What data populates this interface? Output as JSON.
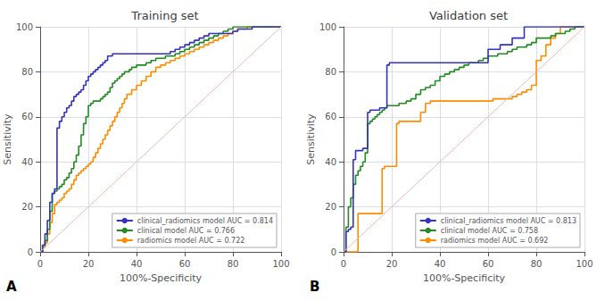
{
  "chart_data": [
    {
      "type": "step",
      "title": "Training set",
      "xlabel": "100%-Specificity",
      "ylabel": "Sensitivity",
      "annotation": "A",
      "xlim": [
        0,
        100
      ],
      "ylim": [
        0,
        100
      ],
      "xticks": [
        0,
        20,
        40,
        60,
        80,
        100
      ],
      "yticks": [
        0,
        20,
        40,
        60,
        80,
        100
      ],
      "grid": true,
      "legend": "lower right",
      "series": [
        {
          "type": "line",
          "color": "#e8b8b8",
          "x": [
            0,
            100
          ],
          "values": [
            0,
            100
          ]
        },
        {
          "name": "clinical_radiomics model AUC = 0.814",
          "color": "#3333bb",
          "x": [
            0,
            1,
            2,
            3,
            4,
            5,
            6,
            7,
            8,
            9,
            10,
            11,
            12,
            13,
            14,
            15,
            16,
            17,
            18,
            19,
            20,
            21,
            22,
            23,
            24,
            25,
            26,
            27,
            28,
            29,
            30,
            31,
            32,
            33,
            34,
            35,
            36,
            37,
            38,
            40,
            42,
            44,
            46,
            48,
            50,
            52,
            54,
            56,
            58,
            60,
            62,
            64,
            66,
            68,
            70,
            72,
            74,
            76,
            78,
            80,
            82,
            84,
            86,
            88,
            90,
            92,
            94,
            96,
            98,
            100
          ],
          "values": [
            0,
            3,
            8,
            14,
            22,
            26,
            28,
            55,
            58,
            60,
            62,
            64,
            65,
            67,
            69,
            70,
            71,
            72,
            74,
            76,
            78,
            79,
            80,
            81,
            82,
            83,
            84,
            85,
            87,
            87,
            88,
            88,
            88,
            88,
            88,
            88,
            88,
            88,
            88,
            88,
            88,
            88,
            88,
            88,
            88,
            88,
            89,
            90,
            91,
            92,
            93,
            94,
            95,
            96,
            97,
            97,
            97,
            97,
            97,
            98,
            99,
            99,
            99,
            100,
            100,
            100,
            100,
            100,
            100,
            100
          ]
        },
        {
          "name": "clinical model AUC = 0.766",
          "color": "#228B22",
          "x": [
            0,
            1,
            2,
            3,
            4,
            5,
            6,
            7,
            8,
            9,
            10,
            11,
            12,
            13,
            14,
            15,
            16,
            17,
            18,
            19,
            20,
            21,
            22,
            23,
            24,
            25,
            26,
            27,
            28,
            29,
            30,
            31,
            32,
            33,
            34,
            35,
            36,
            37,
            38,
            40,
            42,
            44,
            46,
            48,
            50,
            52,
            54,
            56,
            58,
            60,
            62,
            64,
            66,
            68,
            70,
            72,
            74,
            76,
            78,
            80,
            82,
            84,
            86,
            88,
            90,
            92,
            94,
            96,
            98,
            100
          ],
          "values": [
            0,
            3,
            5,
            10,
            18,
            26,
            27,
            28,
            29,
            30,
            32,
            33,
            35,
            37,
            40,
            43,
            47,
            52,
            57,
            60,
            65,
            66,
            67,
            67,
            67,
            68,
            69,
            70,
            71,
            73,
            75,
            76,
            77,
            78,
            79,
            80,
            80,
            81,
            82,
            83,
            83,
            84,
            85,
            86,
            86,
            87,
            87,
            88,
            89,
            90,
            91,
            92,
            93,
            94,
            95,
            96,
            97,
            98,
            99,
            100,
            100,
            100,
            100,
            100,
            100,
            100,
            100,
            100,
            100,
            100
          ]
        },
        {
          "name": "radiomics model AUC = 0.722",
          "color": "#FF8C00",
          "x": [
            0,
            1,
            2,
            3,
            4,
            5,
            6,
            7,
            8,
            9,
            10,
            11,
            12,
            13,
            14,
            15,
            16,
            17,
            18,
            19,
            20,
            21,
            22,
            23,
            24,
            25,
            26,
            27,
            28,
            29,
            30,
            31,
            32,
            33,
            34,
            35,
            36,
            38,
            40,
            42,
            44,
            46,
            48,
            50,
            52,
            54,
            56,
            58,
            60,
            62,
            64,
            66,
            68,
            70,
            72,
            74,
            76,
            78,
            80,
            82,
            84,
            86,
            88,
            90,
            92,
            94,
            96,
            98,
            100
          ],
          "values": [
            0,
            2,
            4,
            8,
            13,
            17,
            21,
            22,
            23,
            24,
            26,
            27,
            28,
            30,
            32,
            34,
            35,
            36,
            37,
            38,
            39,
            40,
            42,
            44,
            46,
            48,
            50,
            52,
            54,
            56,
            58,
            60,
            62,
            64,
            66,
            68,
            70,
            72,
            74,
            76,
            78,
            80,
            82,
            83,
            84,
            85,
            86,
            87,
            88,
            89,
            90,
            91,
            92,
            93,
            94,
            95,
            96,
            97,
            98,
            99,
            99,
            100,
            100,
            100,
            100,
            100,
            100,
            100,
            100
          ]
        }
      ]
    },
    {
      "type": "step",
      "title": "Validation set",
      "xlabel": "100%-Specificity",
      "ylabel": "Sensitivity",
      "annotation": "B",
      "xlim": [
        0,
        100
      ],
      "ylim": [
        0,
        100
      ],
      "xticks": [
        0,
        20,
        40,
        60,
        80,
        100
      ],
      "yticks": [
        0,
        20,
        40,
        60,
        80,
        100
      ],
      "grid": true,
      "legend": "lower right",
      "series": [
        {
          "type": "line",
          "color": "#e8b8b8",
          "x": [
            0,
            100
          ],
          "values": [
            0,
            100
          ]
        },
        {
          "name": "clinical_radiomics model AUC = 0.813",
          "color": "#3333bb",
          "x": [
            0,
            1,
            2,
            3,
            4,
            5,
            6,
            7,
            8,
            9,
            10,
            11,
            12,
            13,
            14,
            15,
            16,
            17,
            18,
            19,
            20,
            21,
            22,
            23,
            24,
            25,
            26,
            27,
            28,
            30,
            32,
            34,
            36,
            38,
            40,
            42,
            44,
            46,
            48,
            50,
            55,
            60,
            65,
            70,
            75,
            80,
            85,
            90,
            95,
            100
          ],
          "values": [
            0,
            9,
            10,
            11,
            41,
            45,
            45,
            45,
            46,
            46,
            62,
            63,
            63,
            63,
            63,
            64,
            64,
            64,
            83,
            84,
            84,
            84,
            84,
            84,
            84,
            84,
            84,
            84,
            84,
            84,
            84,
            84,
            84,
            84,
            84,
            84,
            84,
            84,
            84,
            84,
            84,
            90,
            92,
            95,
            100,
            100,
            100,
            100,
            100,
            100
          ]
        },
        {
          "name": "clinical model AUC = 0.758",
          "color": "#228B22",
          "x": [
            0,
            1,
            2,
            3,
            4,
            5,
            6,
            7,
            8,
            9,
            10,
            11,
            12,
            13,
            14,
            15,
            16,
            17,
            18,
            19,
            20,
            21,
            22,
            23,
            24,
            25,
            26,
            27,
            28,
            30,
            32,
            34,
            36,
            38,
            40,
            42,
            44,
            46,
            48,
            50,
            52,
            54,
            56,
            58,
            60,
            62,
            64,
            66,
            68,
            70,
            72,
            74,
            76,
            78,
            80,
            82,
            84,
            86,
            88,
            90,
            92,
            94,
            96,
            98,
            100
          ],
          "values": [
            0,
            11,
            20,
            24,
            30,
            34,
            36,
            38,
            40,
            44,
            57,
            58,
            59,
            60,
            61,
            62,
            63,
            64,
            65,
            65,
            65,
            65,
            65,
            66,
            66,
            66,
            67,
            67,
            68,
            70,
            72,
            73,
            74,
            76,
            78,
            79,
            80,
            81,
            82,
            83,
            84,
            84,
            85,
            86,
            87,
            87,
            88,
            88,
            89,
            90,
            91,
            91,
            92,
            93,
            95,
            95,
            95,
            96,
            97,
            97,
            98,
            99,
            100,
            100,
            100
          ]
        },
        {
          "name": "radiomics model AUC = 0.692",
          "color": "#FF8C00",
          "x": [
            0,
            1,
            2,
            3,
            4,
            5,
            6,
            7,
            8,
            9,
            10,
            11,
            12,
            13,
            14,
            15,
            16,
            17,
            18,
            19,
            20,
            21,
            22,
            23,
            24,
            25,
            26,
            28,
            30,
            32,
            34,
            36,
            38,
            40,
            42,
            44,
            46,
            48,
            50,
            52,
            54,
            56,
            58,
            60,
            62,
            64,
            66,
            68,
            70,
            72,
            74,
            76,
            78,
            80,
            82,
            84,
            86,
            88,
            90,
            92,
            94,
            96,
            98,
            100
          ],
          "values": [
            0,
            0,
            0,
            0,
            0,
            0,
            17,
            17,
            17,
            17,
            17,
            17,
            17,
            17,
            17,
            17,
            37,
            38,
            38,
            38,
            38,
            38,
            57,
            58,
            58,
            58,
            58,
            58,
            58,
            62,
            66,
            67,
            67,
            67,
            67,
            67,
            67,
            67,
            67,
            67,
            67,
            67,
            67,
            67,
            68,
            68,
            68,
            68,
            69,
            70,
            71,
            72,
            74,
            85,
            87,
            92,
            95,
            97,
            100,
            100,
            100,
            100,
            100,
            100
          ]
        }
      ]
    }
  ]
}
